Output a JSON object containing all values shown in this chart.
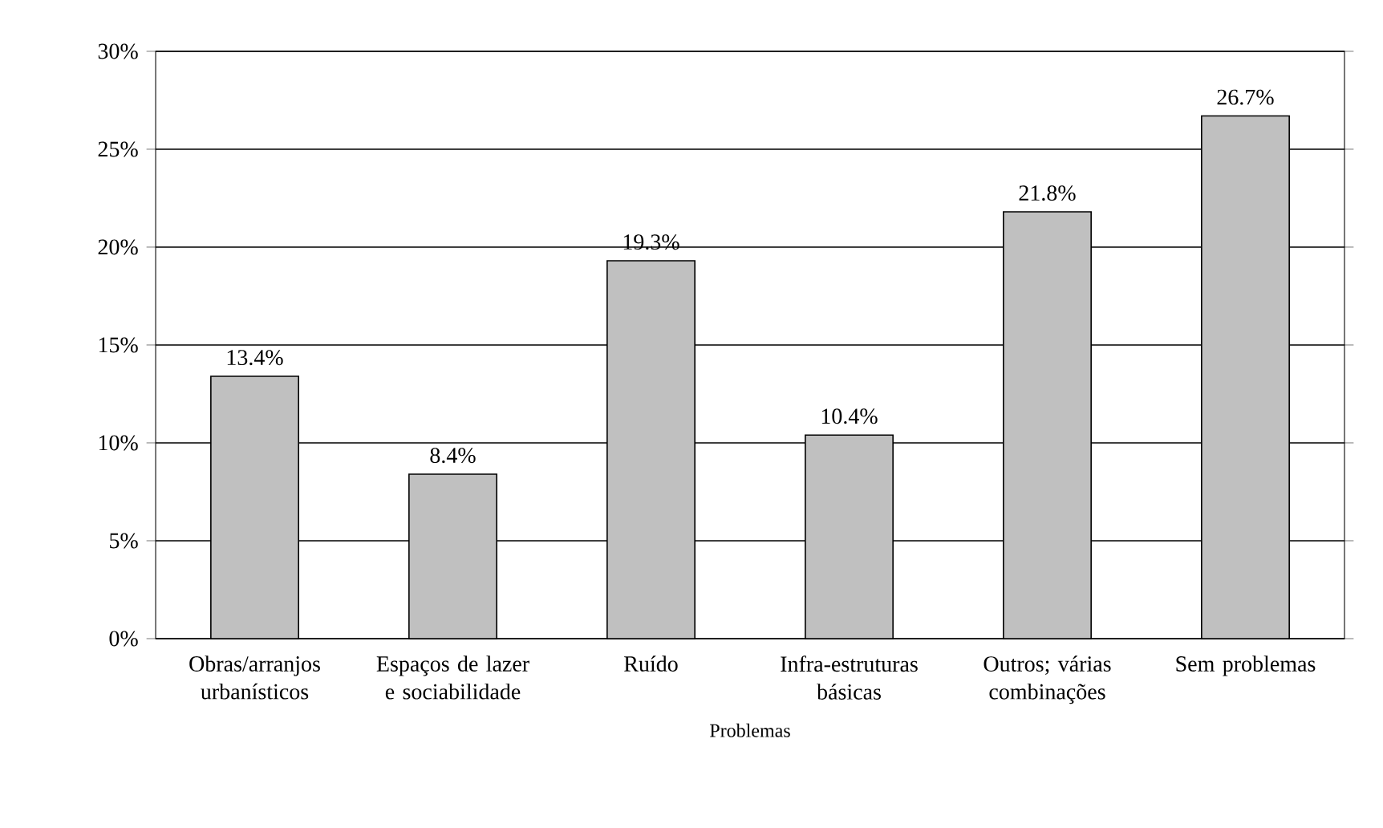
{
  "chart_data": {
    "type": "bar",
    "xlabel": "Problemas",
    "categories": [
      "Obras/arranjos urbanísticos",
      "Espaços de lazer e sociabilidade",
      "Ruído",
      "Infra-estruturas básicas",
      "Outros; várias combinações",
      "Sem problemas"
    ],
    "values": [
      13.4,
      8.4,
      19.3,
      10.4,
      21.8,
      26.7
    ],
    "value_labels": [
      "13.4%",
      "8.4%",
      "19.3%",
      "10.4%",
      "21.8%",
      "26.7%"
    ],
    "color": "#c0c0c0",
    "ylim": [
      0,
      30
    ],
    "yticks": [
      {
        "value": 0,
        "label": "0%"
      },
      {
        "value": 5,
        "label": "5%"
      },
      {
        "value": 10,
        "label": "10%"
      },
      {
        "value": 15,
        "label": "15%"
      },
      {
        "value": 20,
        "label": "20%"
      },
      {
        "value": 25,
        "label": "25%"
      },
      {
        "value": 30,
        "label": "30%"
      }
    ],
    "grid": "y"
  }
}
